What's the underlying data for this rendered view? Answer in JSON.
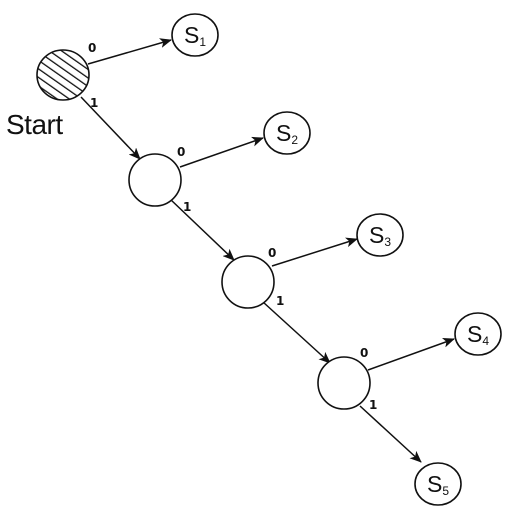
{
  "start_label": "Start",
  "states": [
    {
      "letter": "S",
      "sub": "1"
    },
    {
      "letter": "S",
      "sub": "2"
    },
    {
      "letter": "S",
      "sub": "3"
    },
    {
      "letter": "S",
      "sub": "4"
    },
    {
      "letter": "S",
      "sub": "5"
    }
  ],
  "edge_labels": {
    "start_to_s1": "0",
    "start_to_n1": "1",
    "n1_to_s2": "0",
    "n1_to_n2": "1",
    "n2_to_s3": "0",
    "n2_to_n3": "1",
    "n3_to_s4": "0",
    "n3_to_s5": "1"
  },
  "colors": {
    "ink": "#111111",
    "background": "#ffffff"
  }
}
